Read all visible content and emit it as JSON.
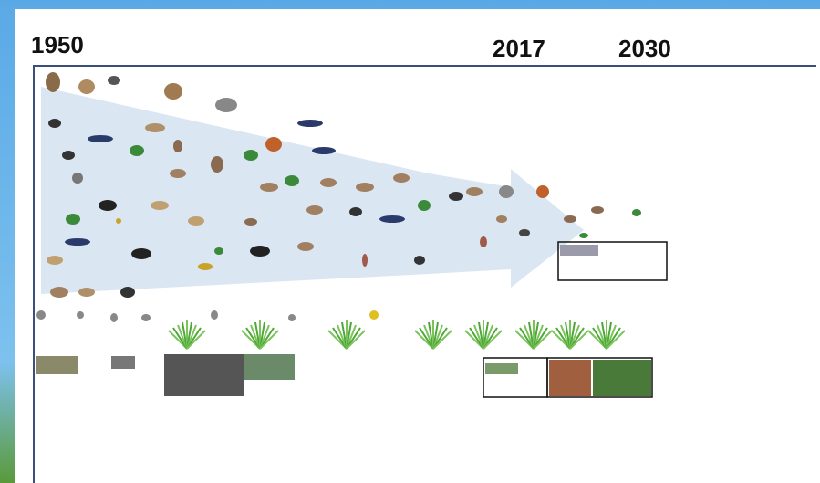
{
  "timeline": {
    "start": "1950",
    "middle": "2017",
    "end": "2030"
  }
}
